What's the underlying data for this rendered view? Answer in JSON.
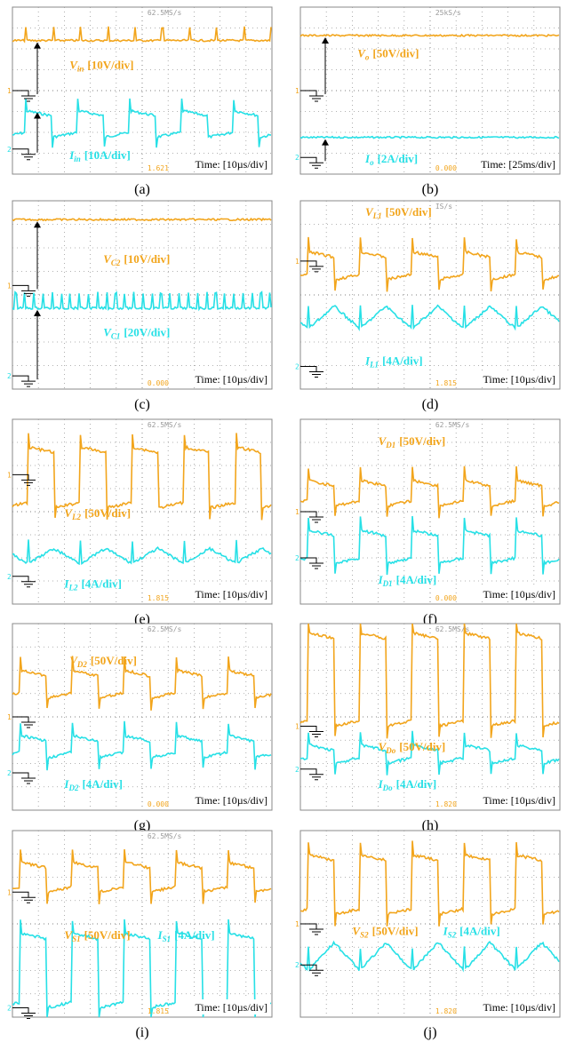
{
  "panels": [
    {
      "caption": "(a)",
      "rate": "62.5MS/s",
      "readout": "1.621",
      "time": "Time: [10µs/div]",
      "channels": [
        "1",
        "2"
      ],
      "labels": [
        {
          "symbol": "V",
          "sub": "in",
          "scale": "[10V/div]"
        },
        {
          "symbol": "I",
          "sub": "in",
          "scale": "[10A/div]"
        }
      ]
    },
    {
      "caption": "(b)",
      "rate": "25kS/s",
      "readout": "0.000",
      "time": "Time: [25ms/div]",
      "channels": [
        "1",
        "2"
      ],
      "labels": [
        {
          "symbol": "V",
          "sub": "o",
          "scale": "[50V/div]"
        },
        {
          "symbol": "I",
          "sub": "o",
          "scale": "[2A/div]"
        }
      ]
    },
    {
      "caption": "(c)",
      "readout": "0.000",
      "time": "Time: [10µs/div]",
      "channels": [
        "1",
        "2"
      ],
      "labels": [
        {
          "symbol": "V",
          "sub": "C2",
          "scale": "[10V/div]"
        },
        {
          "symbol": "V",
          "sub": "C1",
          "scale": "[20V/div]"
        }
      ]
    },
    {
      "caption": "(d)",
      "rate": "IS/s",
      "readout": "1.815",
      "time": "Time: [10µs/div]",
      "channels": [
        "1",
        "2"
      ],
      "labels": [
        {
          "symbol": "V",
          "sub": "L1",
          "scale": "[50V/div]"
        },
        {
          "symbol": "I",
          "sub": "L1",
          "scale": "[4A/div]"
        }
      ]
    },
    {
      "caption": "(e)",
      "rate": "62.5MS/s",
      "readout": "1.815",
      "time": "Time: [10µs/div]",
      "channels": [
        "1",
        "2"
      ],
      "labels": [
        {
          "symbol": "V",
          "sub": "L2",
          "scale": "[50V/div]"
        },
        {
          "symbol": "I",
          "sub": "L2",
          "scale": "[4A/div]"
        }
      ]
    },
    {
      "caption": "(f)",
      "rate": "62.5MS/s",
      "readout": "0.000",
      "time": "Time: [10µs/div]",
      "channels": [
        "1",
        "2"
      ],
      "labels": [
        {
          "symbol": "V",
          "sub": "D1",
          "scale": "[50V/div]"
        },
        {
          "symbol": "I",
          "sub": "D1",
          "scale": "[4A/div]"
        }
      ]
    },
    {
      "caption": "(g)",
      "rate": "62.5MS/s",
      "readout": "0.000",
      "time": "Time: [10µs/div]",
      "channels": [
        "1",
        "2"
      ],
      "labels": [
        {
          "symbol": "V",
          "sub": "D2",
          "scale": "[50V/div]"
        },
        {
          "symbol": "I",
          "sub": "D2",
          "scale": "[4A/div]"
        }
      ]
    },
    {
      "caption": "(h)",
      "rate": "62.5MS/s",
      "readout": "1.820",
      "time": "Time: [10µs/div]",
      "channels": [
        "1",
        "2"
      ],
      "labels": [
        {
          "symbol": "V",
          "sub": "Do",
          "scale": "[50V/div]"
        },
        {
          "symbol": "I",
          "sub": "Do",
          "scale": "[4A/div]"
        }
      ]
    },
    {
      "caption": "(i)",
      "rate": "62.5MS/s",
      "readout": "1.815",
      "time": "Time: [10µs/div]",
      "channels": [
        "1",
        "2"
      ],
      "labels": [
        {
          "symbol": "V",
          "sub": "S1",
          "scale": "[50V/div]"
        },
        {
          "symbol": "I",
          "sub": "S1",
          "scale": "[4A/div]"
        }
      ]
    },
    {
      "caption": "(j)",
      "readout": "1.820",
      "time": "Time: [10µs/div]",
      "channels": [
        "1",
        "2"
      ],
      "labels": [
        {
          "symbol": "V",
          "sub": "S2",
          "scale": "[50V/div]"
        },
        {
          "symbol": "I",
          "sub": "S2",
          "scale": "[4A/div]"
        }
      ]
    }
  ]
}
